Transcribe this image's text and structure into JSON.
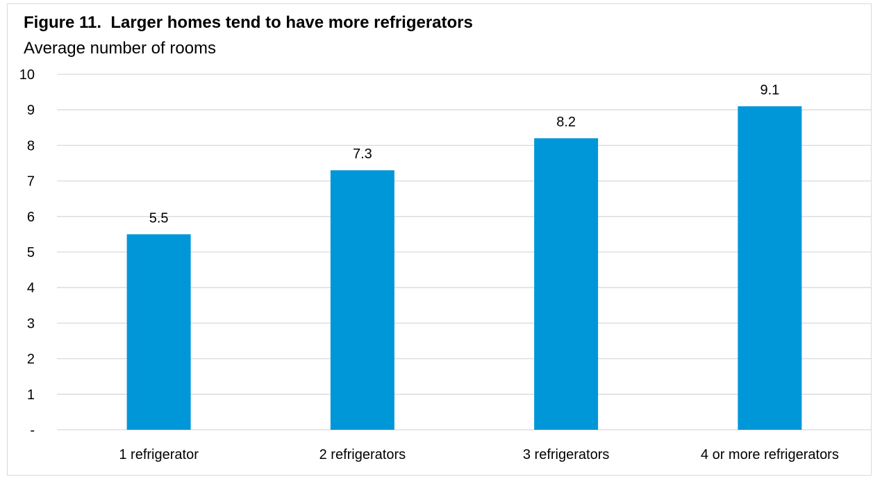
{
  "title": "Figure 11.  Larger homes tend to have more refrigerators",
  "subtitle": "Average number of rooms",
  "chart_data": {
    "type": "bar",
    "title": "Figure 11.  Larger homes tend to have more refrigerators",
    "subtitle": "Average number of rooms",
    "categories": [
      "1 refrigerator",
      "2 refrigerators",
      "3 refrigerators",
      "4 or more refrigerators"
    ],
    "values": [
      5.5,
      7.3,
      8.2,
      9.1
    ],
    "data_labels": [
      "5.5",
      "7.3",
      "8.2",
      "9.1"
    ],
    "yticks": [
      0,
      1,
      2,
      3,
      4,
      5,
      6,
      7,
      8,
      9,
      10
    ],
    "ytick_labels": [
      "-",
      "1",
      "2",
      "3",
      "4",
      "5",
      "6",
      "7",
      "8",
      "9",
      "10"
    ],
    "ylim": [
      0,
      10
    ],
    "xlabel": "",
    "ylabel": "",
    "grid": true,
    "legend": "none",
    "bar_color": "#0097d9",
    "grid_color": "#d9d9d9"
  }
}
